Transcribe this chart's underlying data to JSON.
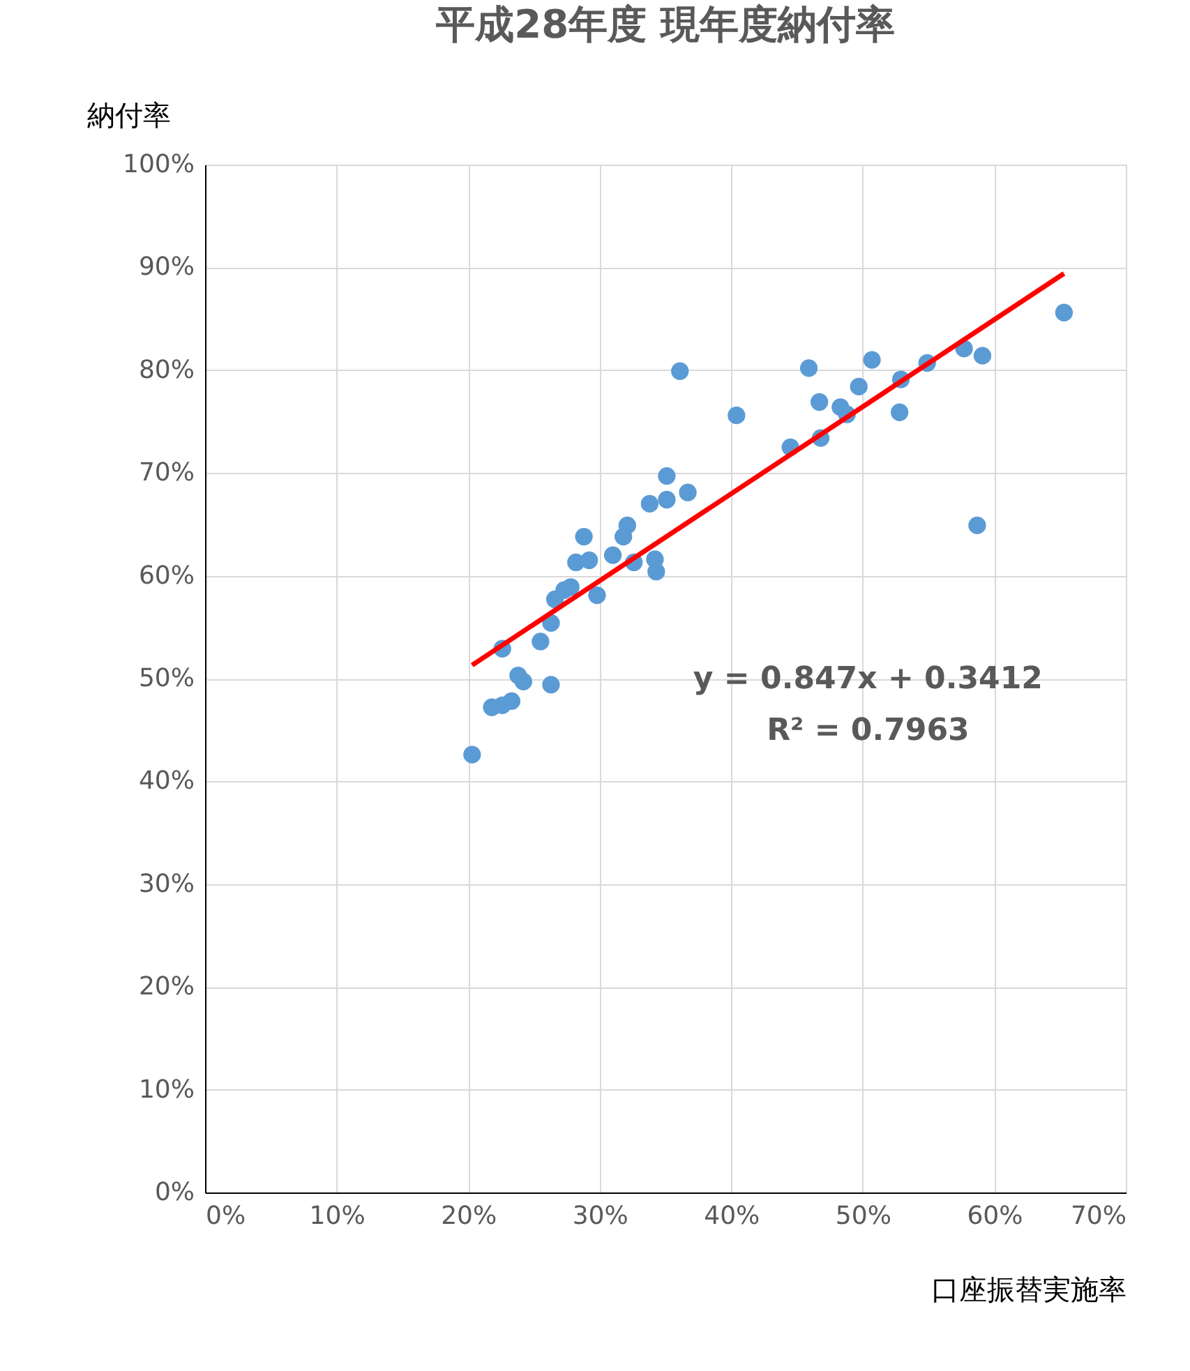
{
  "chart_data": {
    "type": "scatter",
    "title": "平成28年度  現年度納付率",
    "xlabel": "口座振替実施率",
    "ylabel": "納付率",
    "xlim": [
      0,
      70
    ],
    "ylim": [
      0,
      100
    ],
    "xticks": [
      {
        "value": 0,
        "label": "0%"
      },
      {
        "value": 10,
        "label": "10%"
      },
      {
        "value": 20,
        "label": "20%"
      },
      {
        "value": 30,
        "label": "30%"
      },
      {
        "value": 40,
        "label": "40%"
      },
      {
        "value": 50,
        "label": "50%"
      },
      {
        "value": 60,
        "label": "60%"
      },
      {
        "value": 70,
        "label": "70%"
      }
    ],
    "yticks": [
      {
        "value": 0,
        "label": "0%"
      },
      {
        "value": 10,
        "label": "10%"
      },
      {
        "value": 20,
        "label": "20%"
      },
      {
        "value": 30,
        "label": "30%"
      },
      {
        "value": 40,
        "label": "40%"
      },
      {
        "value": 50,
        "label": "50%"
      },
      {
        "value": 60,
        "label": "60%"
      },
      {
        "value": 70,
        "label": "70%"
      },
      {
        "value": 80,
        "label": "80%"
      },
      {
        "value": 90,
        "label": "90%"
      },
      {
        "value": 100,
        "label": "100%"
      }
    ],
    "grid": true,
    "series": [
      {
        "type": "scatter",
        "marker": "circle",
        "color": "#5b9bd5",
        "x": [
          20.3,
          21.8,
          22.6,
          23.3,
          22.6,
          23.8,
          24.2,
          25.5,
          26.3,
          26.3,
          26.6,
          27.3,
          27.8,
          28.2,
          28.8,
          29.2,
          29.8,
          31.0,
          31.8,
          32.1,
          32.6,
          33.8,
          34.2,
          34.3,
          35.1,
          35.1,
          36.1,
          36.7,
          40.4,
          44.5,
          45.9,
          46.7,
          46.8,
          48.3,
          48.8,
          49.7,
          50.7,
          52.8,
          52.9,
          54.9,
          57.7,
          59.1,
          58.7,
          65.3
        ],
        "values": [
          42.6,
          47.2,
          47.4,
          47.8,
          52.9,
          50.3,
          49.7,
          53.6,
          55.4,
          49.4,
          57.7,
          58.6,
          58.9,
          61.3,
          63.8,
          61.5,
          58.1,
          62.0,
          63.8,
          64.9,
          61.3,
          67.0,
          61.6,
          60.4,
          69.7,
          67.4,
          79.9,
          68.1,
          75.6,
          72.5,
          80.2,
          76.9,
          73.4,
          76.4,
          75.7,
          78.4,
          81.0,
          75.9,
          79.1,
          80.7,
          82.1,
          81.4,
          64.9,
          85.6
        ]
      },
      {
        "type": "line",
        "color": "#ff0000",
        "x": [
          20.3,
          65.3
        ],
        "values": [
          51.3,
          89.4
        ]
      }
    ],
    "annotations": [
      "y = 0.847x + 0.3412",
      "R² = 0.7963"
    ]
  }
}
